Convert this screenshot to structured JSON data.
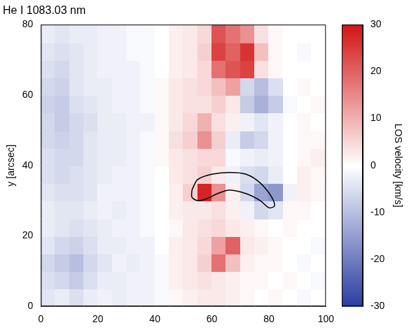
{
  "chart_data": {
    "type": "heatmap",
    "title": "He I 1083.03 nm",
    "y_label": "y [arcsec]",
    "xlim": [
      0,
      100
    ],
    "xticks": [
      0,
      20,
      40,
      60,
      80,
      100
    ],
    "ylim": [
      0,
      80
    ],
    "yticks": [
      0,
      20,
      40,
      60,
      80
    ],
    "grid": false,
    "x": [
      2.5,
      7.5,
      12.5,
      17.5,
      22.5,
      27.5,
      32.5,
      37.5,
      42.5,
      47.5,
      52.5,
      57.5,
      62.5,
      67.5,
      72.5,
      77.5,
      82.5,
      87.5,
      92.5,
      97.5
    ],
    "y": [
      2.5,
      7.5,
      12.5,
      17.5,
      22.5,
      27.5,
      32.5,
      37.5,
      42.5,
      47.5,
      52.5,
      57.5,
      62.5,
      67.5,
      72.5,
      77.5
    ],
    "cells": [
      [
        -4,
        -3,
        -5,
        -3,
        -2,
        -3,
        -2,
        -2,
        -1,
        1,
        2,
        3,
        3,
        2,
        1,
        0,
        1,
        0,
        -1,
        0
      ],
      [
        -5,
        -6,
        -8,
        -5,
        -3,
        -3,
        -2,
        -2,
        -1,
        2,
        3,
        4,
        3,
        2,
        1,
        1,
        0,
        1,
        0,
        -1
      ],
      [
        -6,
        -8,
        -10,
        -6,
        -4,
        -2,
        -3,
        -2,
        -1,
        2,
        3,
        6,
        18,
        8,
        2,
        1,
        1,
        0,
        -1,
        0
      ],
      [
        -4,
        -6,
        -7,
        -5,
        -3,
        -3,
        -2,
        -2,
        0,
        2,
        3,
        5,
        12,
        20,
        3,
        2,
        1,
        0,
        0,
        -1
      ],
      [
        -3,
        -4,
        -5,
        -4,
        -3,
        -2,
        -2,
        -1,
        0,
        1,
        3,
        4,
        5,
        3,
        2,
        1,
        0,
        1,
        0,
        0
      ],
      [
        -3,
        -4,
        -4,
        -3,
        -2,
        -3,
        -2,
        -1,
        0,
        2,
        3,
        3,
        4,
        2,
        -2,
        -6,
        -4,
        1,
        1,
        0
      ],
      [
        -4,
        -5,
        -5,
        -4,
        -2,
        -2,
        -2,
        -1,
        0,
        2,
        6,
        28,
        14,
        2,
        -6,
        -14,
        -16,
        -2,
        2,
        1
      ],
      [
        -5,
        -6,
        -5,
        -4,
        -3,
        -2,
        -2,
        -1,
        0,
        3,
        4,
        6,
        3,
        -2,
        -5,
        -6,
        -3,
        0,
        2,
        1
      ],
      [
        -5,
        -6,
        -6,
        -4,
        -3,
        -3,
        -2,
        -1,
        1,
        3,
        4,
        5,
        5,
        -1,
        -2,
        -3,
        -2,
        0,
        1,
        2
      ],
      [
        -6,
        -7,
        -6,
        -4,
        -3,
        -3,
        -2,
        -1,
        1,
        4,
        6,
        14,
        6,
        -3,
        -8,
        -6,
        -2,
        0,
        1,
        1
      ],
      [
        -6,
        -8,
        -6,
        -5,
        -3,
        -3,
        -2,
        -2,
        1,
        3,
        5,
        10,
        4,
        2,
        -2,
        -4,
        -2,
        0,
        1,
        0
      ],
      [
        -7,
        -8,
        -5,
        -4,
        -3,
        -2,
        -2,
        -1,
        1,
        3,
        4,
        4,
        6,
        3,
        -8,
        -12,
        -8,
        -1,
        0,
        1
      ],
      [
        -6,
        -7,
        -4,
        -3,
        -3,
        -2,
        -2,
        -1,
        1,
        3,
        4,
        5,
        8,
        12,
        -6,
        -10,
        -5,
        0,
        1,
        0
      ],
      [
        -5,
        -6,
        -4,
        -3,
        -2,
        -2,
        -2,
        -1,
        0,
        2,
        3,
        5,
        18,
        22,
        24,
        4,
        1,
        0,
        0,
        0
      ],
      [
        -4,
        -5,
        -4,
        -3,
        -2,
        -2,
        -1,
        -1,
        0,
        2,
        3,
        6,
        24,
        20,
        26,
        8,
        1,
        0,
        -1,
        0
      ],
      [
        -3,
        -4,
        -3,
        -3,
        -2,
        -2,
        -1,
        -1,
        0,
        2,
        3,
        5,
        22,
        18,
        14,
        4,
        1,
        0,
        0,
        0
      ]
    ],
    "contour": {
      "x": [
        53,
        55,
        60,
        66,
        72,
        77,
        81,
        82,
        80,
        77,
        72,
        66,
        62,
        58,
        55,
        53,
        53
      ],
      "y": [
        33,
        36,
        37.5,
        38,
        37.5,
        35,
        31,
        28.5,
        28,
        30,
        32,
        33,
        32,
        30.5,
        30,
        31,
        33
      ]
    },
    "colorbar": {
      "label": "LOS velocity [km/s]",
      "range": [
        -30,
        30
      ],
      "ticks": [
        -30,
        -20,
        -10,
        0,
        10,
        20,
        30
      ]
    }
  }
}
